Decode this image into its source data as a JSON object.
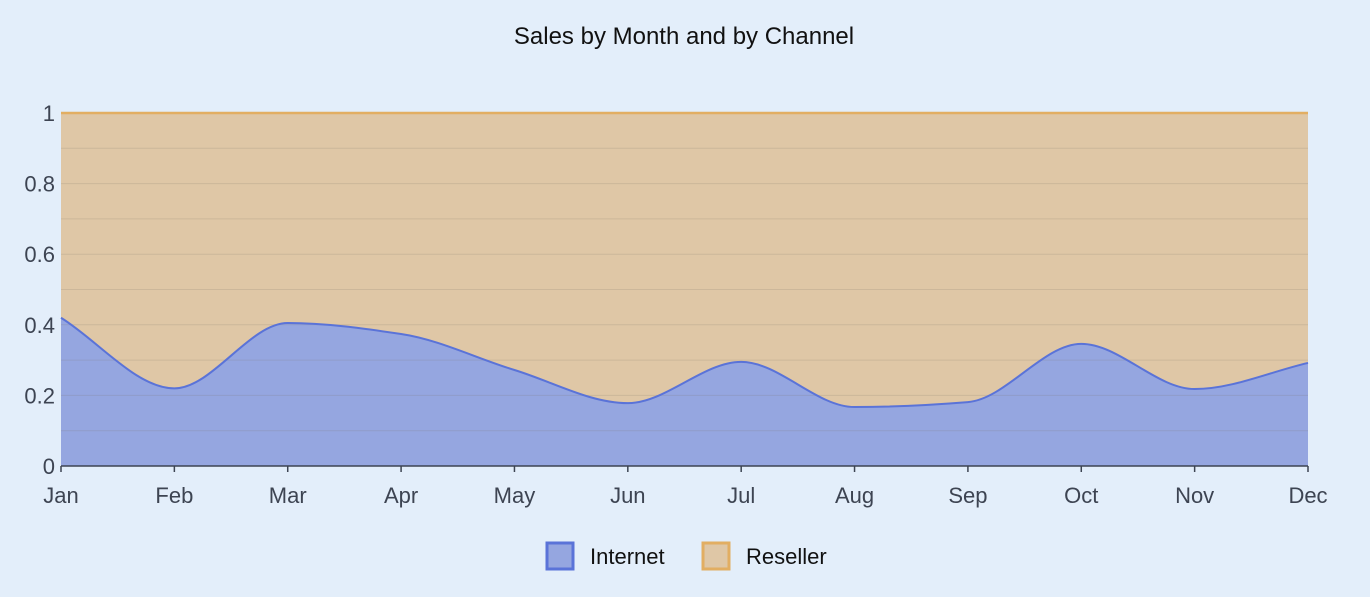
{
  "chart_data": {
    "type": "area",
    "stacked": true,
    "normalized": true,
    "title": "Sales by Month and by Channel",
    "categories": [
      "Jan",
      "Feb",
      "Mar",
      "Apr",
      "May",
      "Jun",
      "Jul",
      "Aug",
      "Sep",
      "Oct",
      "Nov",
      "Dec"
    ],
    "series": [
      {
        "name": "Internet",
        "color": "#5a73d8",
        "fill": "#95a6e0",
        "values": [
          0.42,
          0.22,
          0.405,
          0.374,
          0.272,
          0.178,
          0.295,
          0.167,
          0.181,
          0.346,
          0.218,
          0.292
        ]
      },
      {
        "name": "Reseller",
        "color": "#e2ae62",
        "fill": "#dfc7a6",
        "values": [
          0.58,
          0.78,
          0.595,
          0.626,
          0.728,
          0.822,
          0.705,
          0.833,
          0.819,
          0.654,
          0.782,
          0.708
        ]
      }
    ],
    "ylim": [
      0,
      1
    ],
    "yticks": [
      "0",
      "0.2",
      "0.4",
      "0.6",
      "0.8",
      "1"
    ],
    "grid": true,
    "legend": "bottom",
    "xlabel": "",
    "ylabel": ""
  }
}
